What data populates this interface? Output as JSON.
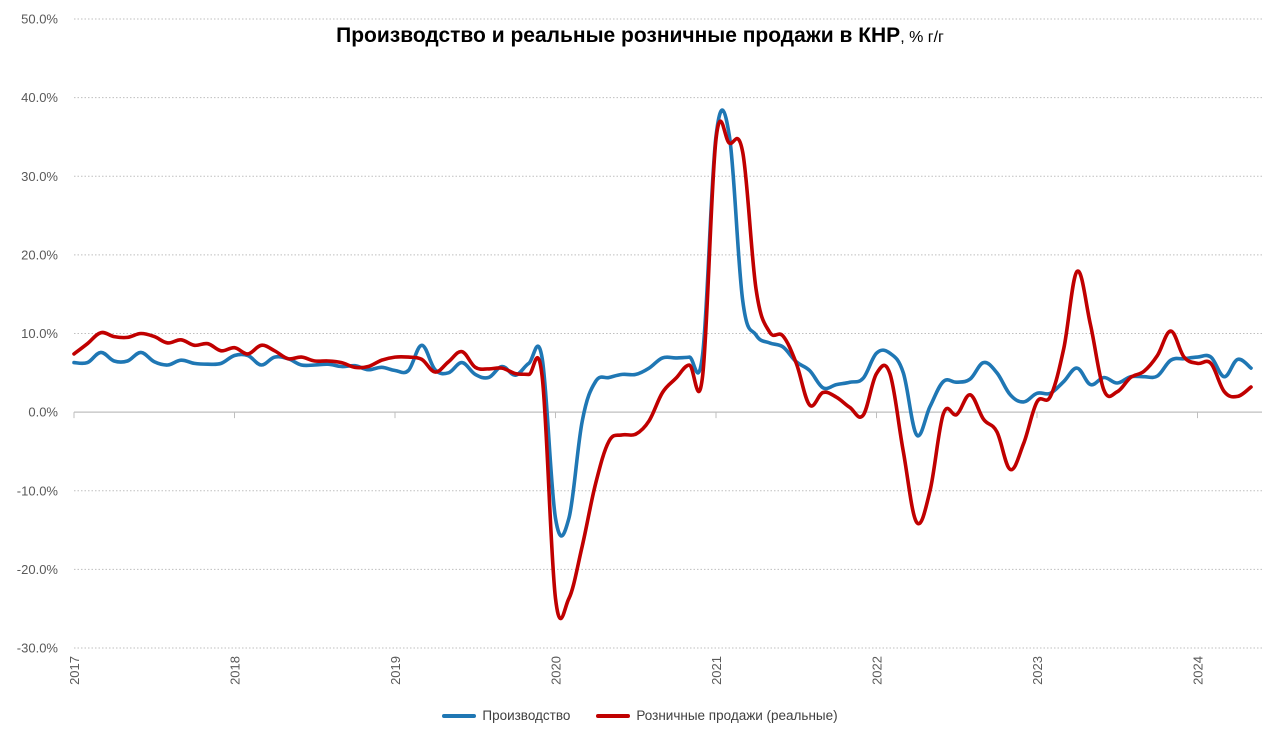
{
  "chart_data": {
    "type": "line",
    "title": "Производство и реальные розничные продажи в КНР",
    "title_unit": ", % г/г",
    "xlabel": "",
    "ylabel": "",
    "ylim": [
      -30,
      50
    ],
    "y_ticks": [
      "50.0%",
      "40.0%",
      "30.0%",
      "20.0%",
      "10.0%",
      "0.0%",
      "-10.0%",
      "-20.0%",
      "-30.0%"
    ],
    "x_ticks": [
      "2017",
      "2018",
      "2019",
      "2020",
      "2021",
      "2022",
      "2023",
      "2024"
    ],
    "grid": "horizontal dotted",
    "legend_placement": "bottom",
    "series": [
      {
        "name": "Производство",
        "color": "#1f77b4",
        "points": [
          [
            "2017-01",
            6.3
          ],
          [
            "2017-02",
            6.3
          ],
          [
            "2017-03",
            7.6
          ],
          [
            "2017-04",
            6.5
          ],
          [
            "2017-05",
            6.5
          ],
          [
            "2017-06",
            7.6
          ],
          [
            "2017-07",
            6.4
          ],
          [
            "2017-08",
            6.0
          ],
          [
            "2017-09",
            6.6
          ],
          [
            "2017-10",
            6.2
          ],
          [
            "2017-11",
            6.1
          ],
          [
            "2017-12",
            6.2
          ],
          [
            "2018-01",
            7.2
          ],
          [
            "2018-02",
            7.2
          ],
          [
            "2018-03",
            6.0
          ],
          [
            "2018-04",
            7.0
          ],
          [
            "2018-05",
            6.8
          ],
          [
            "2018-06",
            6.0
          ],
          [
            "2018-07",
            6.0
          ],
          [
            "2018-08",
            6.1
          ],
          [
            "2018-09",
            5.8
          ],
          [
            "2018-10",
            5.9
          ],
          [
            "2018-11",
            5.4
          ],
          [
            "2018-12",
            5.7
          ],
          [
            "2019-01",
            5.3
          ],
          [
            "2019-02",
            5.3
          ],
          [
            "2019-03",
            8.5
          ],
          [
            "2019-04",
            5.4
          ],
          [
            "2019-05",
            5.0
          ],
          [
            "2019-06",
            6.3
          ],
          [
            "2019-07",
            4.8
          ],
          [
            "2019-08",
            4.4
          ],
          [
            "2019-09",
            5.8
          ],
          [
            "2019-10",
            4.7
          ],
          [
            "2019-11",
            6.2
          ],
          [
            "2019-12",
            6.9
          ],
          [
            "2020-01",
            -13.5
          ],
          [
            "2020-02",
            -13.5
          ],
          [
            "2020-03",
            -1.1
          ],
          [
            "2020-04",
            3.9
          ],
          [
            "2020-05",
            4.4
          ],
          [
            "2020-06",
            4.8
          ],
          [
            "2020-07",
            4.8
          ],
          [
            "2020-08",
            5.6
          ],
          [
            "2020-09",
            6.9
          ],
          [
            "2020-10",
            6.9
          ],
          [
            "2020-11",
            7.0
          ],
          [
            "2020-12",
            7.3
          ],
          [
            "2021-01",
            35.1
          ],
          [
            "2021-02",
            35.1
          ],
          [
            "2021-03",
            14.1
          ],
          [
            "2021-04",
            9.8
          ],
          [
            "2021-05",
            8.8
          ],
          [
            "2021-06",
            8.3
          ],
          [
            "2021-07",
            6.4
          ],
          [
            "2021-08",
            5.3
          ],
          [
            "2021-09",
            3.1
          ],
          [
            "2021-10",
            3.5
          ],
          [
            "2021-11",
            3.8
          ],
          [
            "2021-12",
            4.3
          ],
          [
            "2022-01",
            7.5
          ],
          [
            "2022-02",
            7.5
          ],
          [
            "2022-03",
            5.0
          ],
          [
            "2022-04",
            -2.9
          ],
          [
            "2022-05",
            0.7
          ],
          [
            "2022-06",
            3.9
          ],
          [
            "2022-07",
            3.8
          ],
          [
            "2022-08",
            4.2
          ],
          [
            "2022-09",
            6.3
          ],
          [
            "2022-10",
            5.0
          ],
          [
            "2022-11",
            2.2
          ],
          [
            "2022-12",
            1.3
          ],
          [
            "2023-01",
            2.4
          ],
          [
            "2023-02",
            2.4
          ],
          [
            "2023-03",
            3.9
          ],
          [
            "2023-04",
            5.6
          ],
          [
            "2023-05",
            3.5
          ],
          [
            "2023-06",
            4.4
          ],
          [
            "2023-07",
            3.7
          ],
          [
            "2023-08",
            4.5
          ],
          [
            "2023-09",
            4.5
          ],
          [
            "2023-10",
            4.6
          ],
          [
            "2023-11",
            6.6
          ],
          [
            "2023-12",
            6.8
          ],
          [
            "2024-01",
            7.0
          ],
          [
            "2024-02",
            7.0
          ],
          [
            "2024-03",
            4.5
          ],
          [
            "2024-04",
            6.7
          ],
          [
            "2024-05",
            5.6
          ]
        ]
      },
      {
        "name": "Розничные продажи (реальные)",
        "color": "#c00000",
        "points": [
          [
            "2017-01",
            7.4
          ],
          [
            "2017-02",
            8.7
          ],
          [
            "2017-03",
            10.1
          ],
          [
            "2017-04",
            9.6
          ],
          [
            "2017-05",
            9.5
          ],
          [
            "2017-06",
            10.0
          ],
          [
            "2017-07",
            9.6
          ],
          [
            "2017-08",
            8.8
          ],
          [
            "2017-09",
            9.2
          ],
          [
            "2017-10",
            8.5
          ],
          [
            "2017-11",
            8.7
          ],
          [
            "2017-12",
            7.8
          ],
          [
            "2018-01",
            8.2
          ],
          [
            "2018-02",
            7.4
          ],
          [
            "2018-03",
            8.5
          ],
          [
            "2018-04",
            7.8
          ],
          [
            "2018-05",
            6.8
          ],
          [
            "2018-06",
            7.0
          ],
          [
            "2018-07",
            6.5
          ],
          [
            "2018-08",
            6.5
          ],
          [
            "2018-09",
            6.3
          ],
          [
            "2018-10",
            5.7
          ],
          [
            "2018-11",
            5.8
          ],
          [
            "2018-12",
            6.6
          ],
          [
            "2019-01",
            7.0
          ],
          [
            "2019-02",
            7.0
          ],
          [
            "2019-03",
            6.7
          ],
          [
            "2019-04",
            5.1
          ],
          [
            "2019-05",
            6.4
          ],
          [
            "2019-06",
            7.7
          ],
          [
            "2019-07",
            5.7
          ],
          [
            "2019-08",
            5.5
          ],
          [
            "2019-09",
            5.6
          ],
          [
            "2019-10",
            4.9
          ],
          [
            "2019-11",
            4.8
          ],
          [
            "2019-12",
            4.6
          ],
          [
            "2020-01",
            -23.7
          ],
          [
            "2020-02",
            -23.7
          ],
          [
            "2020-03",
            -17.0
          ],
          [
            "2020-04",
            -9.1
          ],
          [
            "2020-05",
            -3.7
          ],
          [
            "2020-06",
            -2.9
          ],
          [
            "2020-07",
            -2.8
          ],
          [
            "2020-08",
            -1.1
          ],
          [
            "2020-09",
            2.5
          ],
          [
            "2020-10",
            4.3
          ],
          [
            "2020-11",
            6.0
          ],
          [
            "2020-12",
            4.6
          ],
          [
            "2021-01",
            34.7
          ],
          [
            "2021-02",
            34.2
          ],
          [
            "2021-03",
            33.0
          ],
          [
            "2021-04",
            15.6
          ],
          [
            "2021-05",
            10.2
          ],
          [
            "2021-06",
            9.7
          ],
          [
            "2021-07",
            6.2
          ],
          [
            "2021-08",
            0.9
          ],
          [
            "2021-09",
            2.5
          ],
          [
            "2021-10",
            1.9
          ],
          [
            "2021-11",
            0.6
          ],
          [
            "2021-12",
            -0.4
          ],
          [
            "2022-01",
            4.9
          ],
          [
            "2022-02",
            4.9
          ],
          [
            "2022-03",
            -5.0
          ],
          [
            "2022-04",
            -14.0
          ],
          [
            "2022-05",
            -10.0
          ],
          [
            "2022-06",
            -0.2
          ],
          [
            "2022-07",
            -0.3
          ],
          [
            "2022-08",
            2.2
          ],
          [
            "2022-09",
            -0.9
          ],
          [
            "2022-10",
            -2.5
          ],
          [
            "2022-11",
            -7.3
          ],
          [
            "2022-12",
            -4.0
          ],
          [
            "2023-01",
            1.3
          ],
          [
            "2023-02",
            2.0
          ],
          [
            "2023-03",
            8.1
          ],
          [
            "2023-04",
            17.9
          ],
          [
            "2023-05",
            11.1
          ],
          [
            "2023-06",
            2.8
          ],
          [
            "2023-07",
            2.6
          ],
          [
            "2023-08",
            4.4
          ],
          [
            "2023-09",
            5.2
          ],
          [
            "2023-10",
            7.2
          ],
          [
            "2023-11",
            10.3
          ],
          [
            "2023-12",
            7.0
          ],
          [
            "2024-01",
            6.2
          ],
          [
            "2024-02",
            6.2
          ],
          [
            "2024-03",
            2.6
          ],
          [
            "2024-04",
            2.0
          ],
          [
            "2024-05",
            3.2
          ]
        ]
      }
    ]
  }
}
